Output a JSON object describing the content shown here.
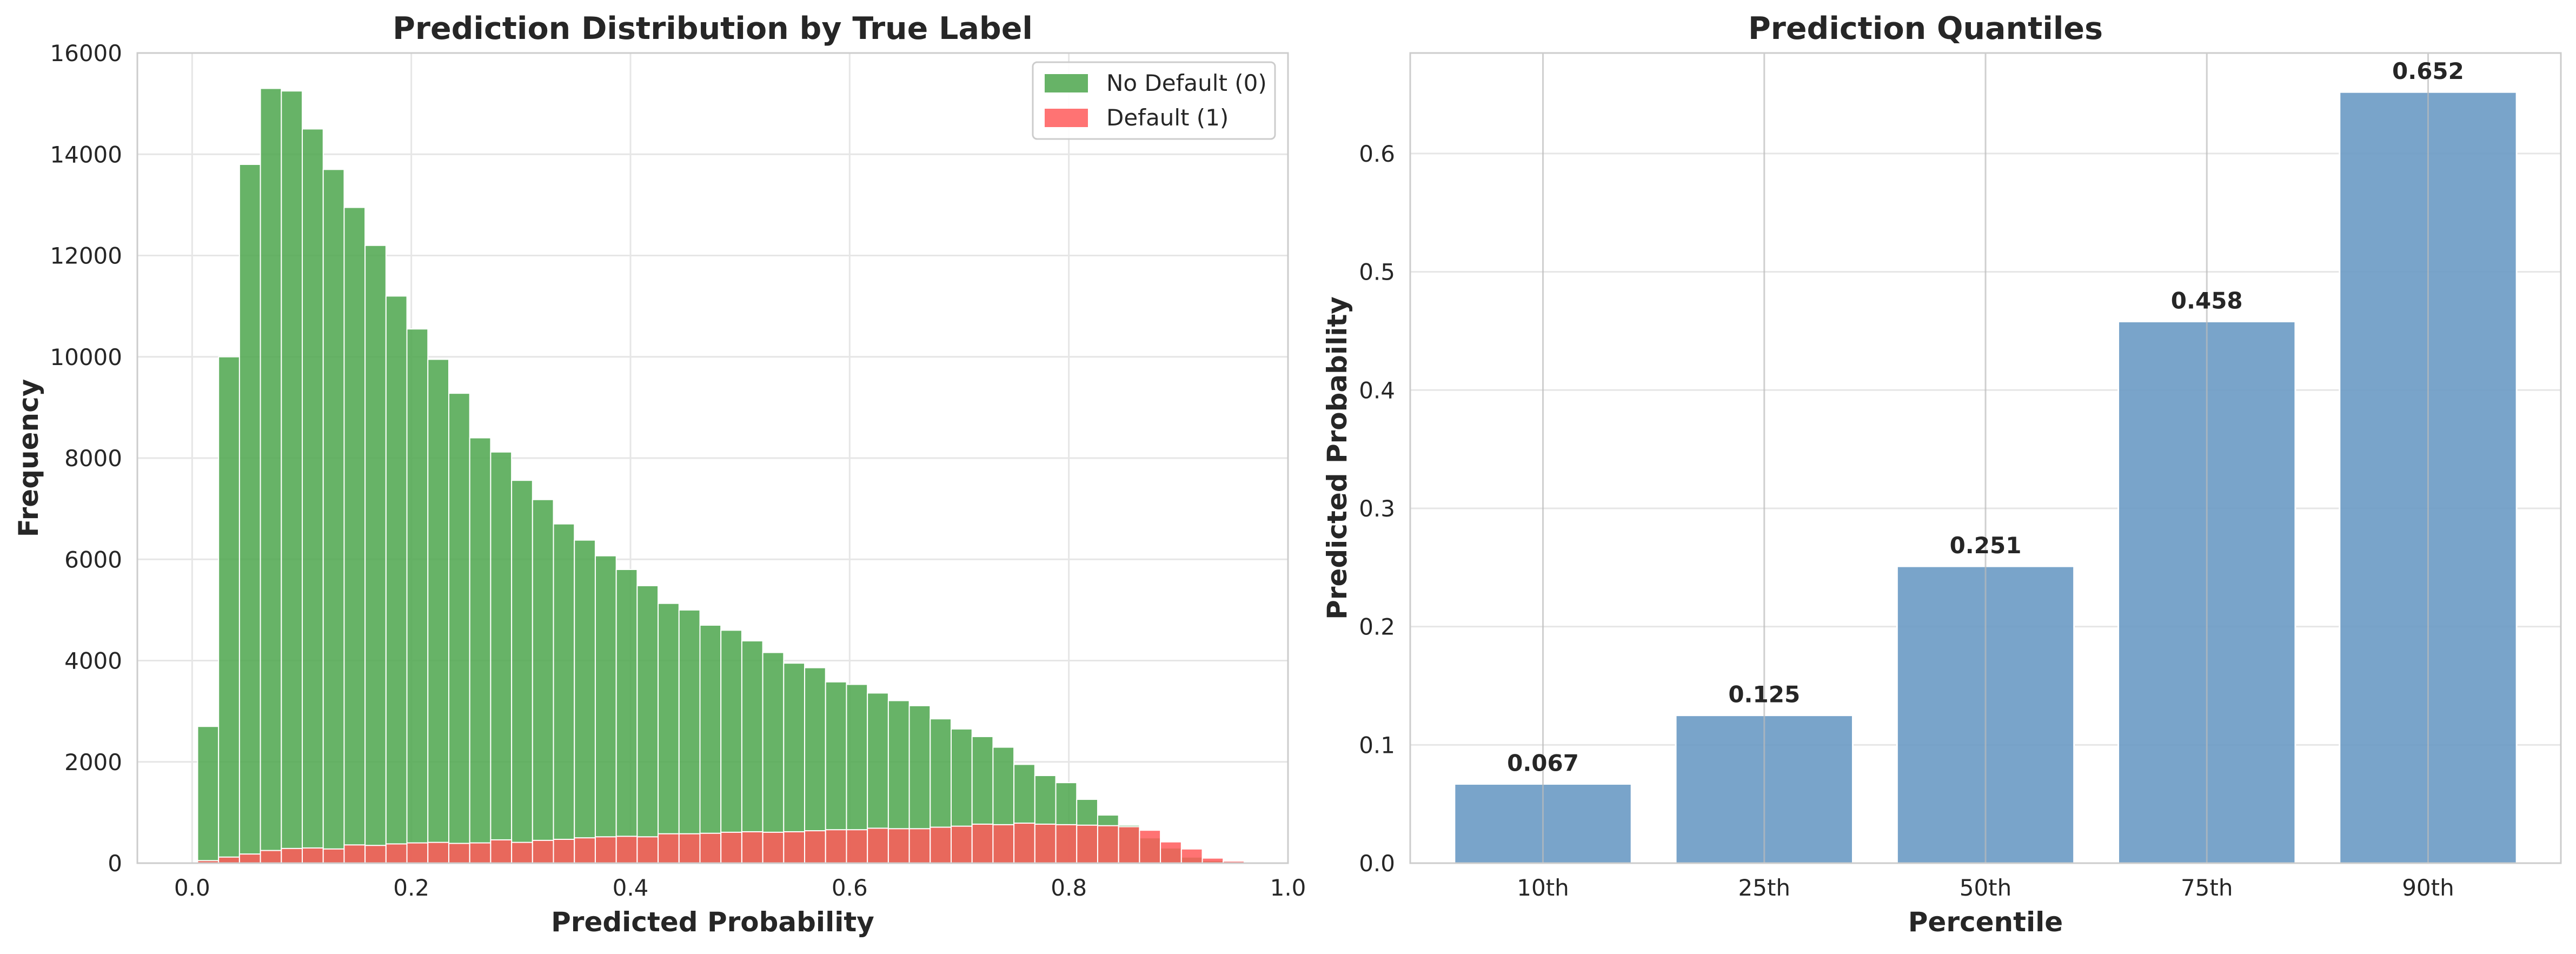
{
  "chart_data": [
    {
      "type": "bar",
      "subtype": "histogram",
      "title": "Prediction Distribution by True Label",
      "xlabel": "Predicted Probability",
      "ylabel": "Frequency",
      "xlim": [
        -0.05,
        1.0
      ],
      "ylim": [
        0,
        16000
      ],
      "xticks": [
        "0.0",
        "0.2",
        "0.4",
        "0.6",
        "0.8",
        "1.0"
      ],
      "yticks": [
        "0",
        "2000",
        "4000",
        "6000",
        "8000",
        "10000",
        "12000",
        "14000",
        "16000"
      ],
      "grid": true,
      "legend": "top-right",
      "bin_width": 0.0191,
      "bin_start": 0.005,
      "series": [
        {
          "name": "No Default (0)",
          "color": "#4ca64c",
          "values": [
            2700,
            10000,
            13800,
            15300,
            15250,
            14500,
            13700,
            12950,
            12200,
            11200,
            10550,
            9950,
            9280,
            8400,
            8120,
            7560,
            7180,
            6700,
            6380,
            6070,
            5800,
            5480,
            5130,
            5000,
            4700,
            4600,
            4390,
            4160,
            3950,
            3860,
            3580,
            3530,
            3360,
            3210,
            3110,
            2850,
            2650,
            2500,
            2290,
            1950,
            1730,
            1590,
            1260,
            950,
            750,
            500,
            300,
            120,
            50,
            20
          ]
        },
        {
          "name": "Default (1)",
          "color": "#ff5a5a",
          "values": [
            50,
            120,
            180,
            250,
            290,
            300,
            280,
            360,
            350,
            380,
            400,
            410,
            390,
            400,
            460,
            410,
            450,
            470,
            500,
            520,
            530,
            520,
            580,
            580,
            590,
            610,
            620,
            610,
            620,
            640,
            660,
            660,
            690,
            680,
            680,
            710,
            730,
            770,
            760,
            790,
            770,
            760,
            750,
            740,
            720,
            650,
            420,
            280,
            100,
            40
          ]
        }
      ]
    },
    {
      "type": "bar",
      "title": "Prediction Quantiles",
      "xlabel": "Percentile",
      "ylabel": "Predicted Probability",
      "categories": [
        "10th",
        "25th",
        "50th",
        "75th",
        "90th"
      ],
      "values": [
        0.067,
        0.125,
        0.251,
        0.458,
        0.652
      ],
      "value_labels": [
        "0.067",
        "0.125",
        "0.251",
        "0.458",
        "0.652"
      ],
      "ylim": [
        0,
        0.685
      ],
      "yticks": [
        "0.0",
        "0.1",
        "0.2",
        "0.3",
        "0.4",
        "0.5",
        "0.6"
      ],
      "grid": true,
      "color": "#6a9ac4"
    }
  ]
}
